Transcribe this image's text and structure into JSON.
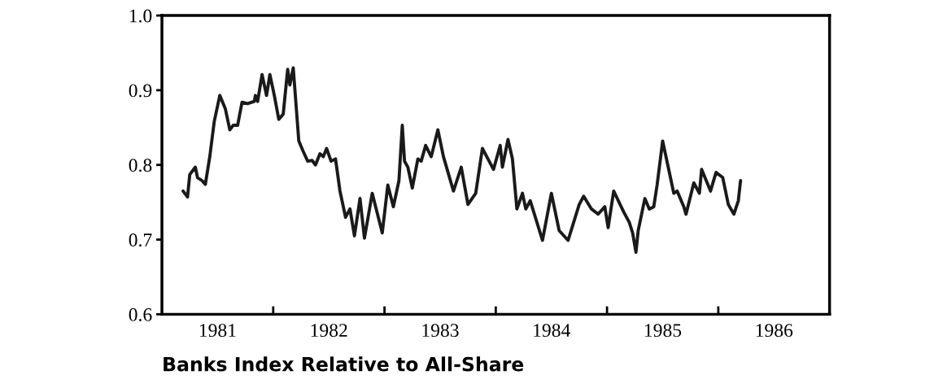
{
  "chart_data": {
    "type": "line",
    "xlabel": "Banks Index Relative to All-Share",
    "xlim": [
      1981,
      1987
    ],
    "xticks": [
      {
        "value": 1981.5,
        "label": "1981"
      },
      {
        "value": 1982,
        "label": null
      },
      {
        "value": 1982.5,
        "label": "1982"
      },
      {
        "value": 1983,
        "label": null
      },
      {
        "value": 1983.5,
        "label": "1983"
      },
      {
        "value": 1984,
        "label": null
      },
      {
        "value": 1984.5,
        "label": "1984"
      },
      {
        "value": 1985,
        "label": null
      },
      {
        "value": 1985.5,
        "label": "1985"
      },
      {
        "value": 1986,
        "label": null
      },
      {
        "value": 1986.5,
        "label": "1986"
      }
    ],
    "ylim": [
      0.6,
      1.0
    ],
    "yticks": [
      {
        "value": 0.6,
        "label": "0.6"
      },
      {
        "value": 0.7,
        "label": "0.7"
      },
      {
        "value": 0.8,
        "label": "0.8"
      },
      {
        "value": 0.9,
        "label": "0.9"
      },
      {
        "value": 1.0,
        "label": "1.0"
      }
    ],
    "grid": false,
    "marker": "none",
    "line_style": "solid",
    "series": [
      {
        "color": "#1a1a1a",
        "x": [
          1981.19,
          1981.23,
          1981.25,
          1981.3,
          1981.32,
          1981.36,
          1981.39,
          1981.43,
          1981.47,
          1981.52,
          1981.57,
          1981.61,
          1981.64,
          1981.68,
          1981.72,
          1981.77,
          1981.83,
          1981.84,
          1981.86,
          1981.9,
          1981.94,
          1981.97,
          1982.01,
          1982.05,
          1982.09,
          1982.13,
          1982.15,
          1982.18,
          1982.23,
          1982.27,
          1982.31,
          1982.35,
          1982.38,
          1982.42,
          1982.45,
          1982.48,
          1982.52,
          1982.56,
          1982.6,
          1982.65,
          1982.69,
          1982.73,
          1982.78,
          1982.82,
          1982.89,
          1982.98,
          1983.03,
          1983.08,
          1983.13,
          1983.16,
          1983.18,
          1983.21,
          1983.25,
          1983.3,
          1983.33,
          1983.37,
          1983.42,
          1983.48,
          1983.53,
          1983.62,
          1983.69,
          1983.75,
          1983.82,
          1983.88,
          1983.93,
          1983.98,
          1984.04,
          1984.06,
          1984.11,
          1984.15,
          1984.19,
          1984.24,
          1984.27,
          1984.31,
          1984.42,
          1984.5,
          1984.57,
          1984.65,
          1984.75,
          1984.79,
          1984.86,
          1984.92,
          1984.98,
          1985.01,
          1985.06,
          1985.15,
          1985.2,
          1985.23,
          1985.26,
          1985.28,
          1985.34,
          1985.38,
          1985.42,
          1985.45,
          1985.5,
          1985.55,
          1985.6,
          1985.63,
          1985.69,
          1985.71,
          1985.78,
          1985.83,
          1985.85,
          1985.93,
          1985.98,
          1986.04,
          1986.09,
          1986.14,
          1986.18,
          1986.2
        ],
        "values": [
          0.765,
          0.757,
          0.787,
          0.797,
          0.783,
          0.779,
          0.774,
          0.811,
          0.858,
          0.893,
          0.875,
          0.847,
          0.853,
          0.853,
          0.884,
          0.882,
          0.885,
          0.893,
          0.885,
          0.921,
          0.893,
          0.921,
          0.893,
          0.861,
          0.868,
          0.928,
          0.907,
          0.93,
          0.832,
          0.818,
          0.805,
          0.806,
          0.8,
          0.815,
          0.811,
          0.822,
          0.805,
          0.808,
          0.765,
          0.73,
          0.741,
          0.705,
          0.755,
          0.702,
          0.762,
          0.709,
          0.773,
          0.744,
          0.779,
          0.853,
          0.805,
          0.797,
          0.769,
          0.808,
          0.805,
          0.826,
          0.811,
          0.847,
          0.811,
          0.765,
          0.797,
          0.747,
          0.762,
          0.822,
          0.808,
          0.794,
          0.826,
          0.797,
          0.834,
          0.808,
          0.741,
          0.762,
          0.741,
          0.752,
          0.699,
          0.762,
          0.712,
          0.699,
          0.747,
          0.758,
          0.741,
          0.734,
          0.744,
          0.716,
          0.765,
          0.737,
          0.723,
          0.709,
          0.683,
          0.712,
          0.755,
          0.741,
          0.744,
          0.773,
          0.832,
          0.797,
          0.762,
          0.765,
          0.744,
          0.734,
          0.776,
          0.762,
          0.794,
          0.765,
          0.79,
          0.783,
          0.747,
          0.734,
          0.752,
          0.779
        ]
      }
    ]
  }
}
